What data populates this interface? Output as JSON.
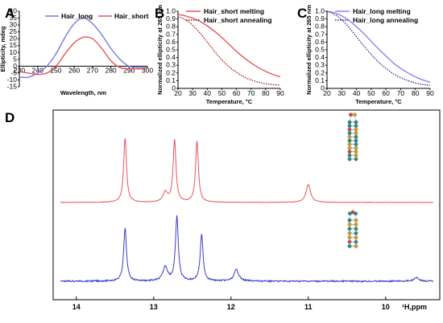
{
  "chart_data": [
    {
      "panel": "A",
      "type": "line",
      "xlabel": "Wavelength, nm",
      "ylabel": "Ellipticity, mdeg",
      "xlim": [
        230,
        300
      ],
      "ylim": [
        -15,
        40
      ],
      "xticks": [
        "230",
        "240",
        "250",
        "260",
        "270",
        "280",
        "290",
        "300"
      ],
      "yticks": [
        "-15",
        "-10",
        "-5",
        "0",
        "5",
        "10",
        "15",
        "20",
        "25",
        "30",
        "35",
        "40"
      ],
      "legend": "top",
      "series": [
        {
          "name": "Hair_long",
          "color": "#7b78e0",
          "x": [
            230,
            235,
            240,
            245,
            250,
            255,
            260,
            265,
            270,
            275,
            280,
            285,
            290,
            295,
            300
          ],
          "y": [
            -8,
            -8,
            -5,
            0,
            9,
            21,
            31,
            35,
            31,
            23,
            13,
            5,
            0,
            -1,
            -1
          ]
        },
        {
          "name": "Hair_short",
          "color": "#e8545a",
          "x": [
            230,
            235,
            240,
            245,
            250,
            255,
            260,
            265,
            270,
            275,
            280,
            285,
            290,
            295,
            300
          ],
          "y": [
            -4,
            -5,
            -6,
            -5,
            0,
            9,
            17,
            21,
            20,
            13,
            4,
            -1,
            -2,
            -2,
            -2
          ]
        }
      ]
    },
    {
      "panel": "B",
      "type": "line",
      "xlabel": "Temperature, °C",
      "ylabel": "Normalized ellipticity at 265 nm",
      "xlim": [
        20,
        90
      ],
      "ylim": [
        0,
        1
      ],
      "xticks": [
        "20",
        "30",
        "40",
        "50",
        "60",
        "70",
        "80",
        "90"
      ],
      "yticks": [
        "0",
        "0.1",
        "0.2",
        "0.3",
        "0.4",
        "0.5",
        "0.6",
        "0.7",
        "0.8",
        "0.9",
        "1.0"
      ],
      "legend": "top-right",
      "series": [
        {
          "name": "Hair_short melting",
          "color": "#e8545a",
          "style": "solid",
          "x": [
            20,
            25,
            30,
            35,
            40,
            45,
            50,
            55,
            60,
            65,
            70,
            75,
            80,
            85,
            90
          ],
          "y": [
            0.96,
            0.94,
            0.91,
            0.87,
            0.81,
            0.74,
            0.66,
            0.57,
            0.48,
            0.4,
            0.33,
            0.27,
            0.22,
            0.18,
            0.15
          ]
        },
        {
          "name": "Hair_short annealing",
          "color": "#a01818",
          "style": "dotted",
          "x": [
            20,
            25,
            30,
            35,
            40,
            45,
            50,
            55,
            60,
            65,
            70,
            75,
            80,
            85,
            90
          ],
          "y": [
            0.93,
            0.89,
            0.82,
            0.72,
            0.6,
            0.48,
            0.37,
            0.28,
            0.21,
            0.15,
            0.11,
            0.08,
            0.06,
            0.05,
            0.04
          ]
        }
      ]
    },
    {
      "panel": "C",
      "type": "line",
      "xlabel": "Temperature, °C",
      "ylabel": "Normalized ellipticity at 265 nm",
      "xlim": [
        20,
        90
      ],
      "ylim": [
        0,
        1
      ],
      "xticks": [
        "20",
        "30",
        "40",
        "50",
        "60",
        "70",
        "80",
        "90"
      ],
      "yticks": [
        "0",
        "0.1",
        "0.2",
        "0.3",
        "0.4",
        "0.5",
        "0.6",
        "0.7",
        "0.8",
        "0.9",
        "1.0"
      ],
      "legend": "top-right",
      "series": [
        {
          "name": "Hair_long melting",
          "color": "#8a86e8",
          "style": "solid",
          "x": [
            20,
            25,
            30,
            35,
            40,
            45,
            50,
            55,
            60,
            65,
            70,
            75,
            80,
            85,
            90
          ],
          "y": [
            1.0,
            0.98,
            0.94,
            0.88,
            0.8,
            0.71,
            0.61,
            0.51,
            0.42,
            0.33,
            0.26,
            0.2,
            0.15,
            0.11,
            0.08
          ]
        },
        {
          "name": "Hair_long annealing",
          "color": "#2a2a8a",
          "style": "dotted",
          "x": [
            20,
            25,
            30,
            35,
            40,
            45,
            50,
            55,
            60,
            65,
            70,
            75,
            80,
            85,
            90
          ],
          "y": [
            1.0,
            0.96,
            0.89,
            0.79,
            0.67,
            0.55,
            0.44,
            0.34,
            0.26,
            0.19,
            0.14,
            0.1,
            0.07,
            0.05,
            0.04
          ]
        }
      ]
    },
    {
      "panel": "D",
      "type": "line",
      "xlabel": "¹H,ppm",
      "xlim": [
        14.3,
        9.3
      ],
      "xticks": [
        "14",
        "13",
        "12",
        "11",
        "10"
      ],
      "series": [
        {
          "name": "",
          "color": "#e8545a",
          "peaks": [
            {
              "ppm": 13.37,
              "h": 1.0
            },
            {
              "ppm": 12.85,
              "h": 0.15
            },
            {
              "ppm": 12.73,
              "h": 0.97
            },
            {
              "ppm": 12.44,
              "h": 0.95
            },
            {
              "ppm": 11.0,
              "h": 0.28
            }
          ]
        },
        {
          "name": "",
          "color": "#3b3bc8",
          "peaks": [
            {
              "ppm": 13.37,
              "h": 0.82
            },
            {
              "ppm": 12.85,
              "h": 0.22
            },
            {
              "ppm": 12.7,
              "h": 1.0
            },
            {
              "ppm": 12.38,
              "h": 0.72
            },
            {
              "ppm": 11.93,
              "h": 0.18
            },
            {
              "ppm": 9.6,
              "h": 0.06
            }
          ]
        }
      ]
    }
  ],
  "panel_labels": {
    "a": "A",
    "b": "B",
    "c": "C",
    "d": "D"
  },
  "hairpins": {
    "top": [
      "G",
      "G",
      "A",
      "C",
      "C",
      "G",
      "C",
      "G",
      "A",
      "G",
      "G",
      "A",
      "C",
      "G",
      "G",
      "C",
      "C",
      "G",
      "G",
      "G",
      "C",
      "C",
      "C",
      "G"
    ],
    "bottom": [
      "G",
      "A",
      "C",
      "C",
      "G",
      "C",
      "G",
      "G",
      "A",
      "G",
      "C",
      "C",
      "G",
      "G",
      "C",
      "G",
      "C"
    ]
  }
}
